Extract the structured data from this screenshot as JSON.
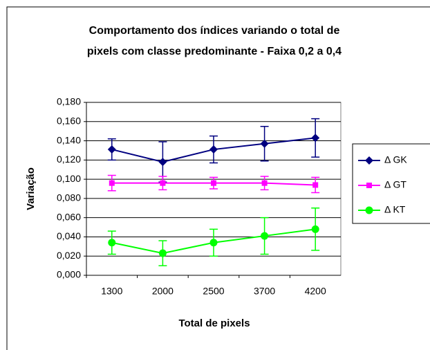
{
  "chart_data": {
    "type": "line",
    "title": [
      "Comportamento dos índices variando o total de",
      "pixels com classe predominante - Faixa 0,2 a 0,4"
    ],
    "x_label": "Total de pixels",
    "y_label": "Variação",
    "categories": [
      "1300",
      "2000",
      "2500",
      "3700",
      "4200"
    ],
    "series": [
      {
        "name": "Δ GK",
        "color": "#000080",
        "marker": "diamond",
        "values": [
          0.131,
          0.118,
          0.131,
          0.137,
          0.143
        ],
        "errors": [
          0.011,
          0.021,
          0.014,
          0.018,
          0.02
        ]
      },
      {
        "name": "Δ GT",
        "color": "#ff00ff",
        "marker": "square",
        "values": [
          0.096,
          0.096,
          0.096,
          0.096,
          0.094
        ],
        "errors": [
          0.008,
          0.007,
          0.006,
          0.007,
          0.008
        ]
      },
      {
        "name": "Δ KT",
        "color": "#00ff00",
        "marker": "circle",
        "values": [
          0.034,
          0.023,
          0.034,
          0.041,
          0.048
        ],
        "errors": [
          0.012,
          0.013,
          0.014,
          0.019,
          0.022
        ]
      }
    ],
    "ylim": [
      0,
      0.18
    ],
    "yticks": [
      {
        "value": 0,
        "label": "0,000"
      },
      {
        "value": 0.02,
        "label": "0,020"
      },
      {
        "value": 0.04,
        "label": "0,040"
      },
      {
        "value": 0.06,
        "label": "0,060"
      },
      {
        "value": 0.08,
        "label": "0,080"
      },
      {
        "value": 0.1,
        "label": "0,100"
      },
      {
        "value": 0.12,
        "label": "0,120"
      },
      {
        "value": 0.14,
        "label": "0,140"
      },
      {
        "value": 0.16,
        "label": "0,160"
      },
      {
        "value": 0.18,
        "label": "0,180"
      }
    ],
    "grid": true,
    "legend": "right"
  }
}
